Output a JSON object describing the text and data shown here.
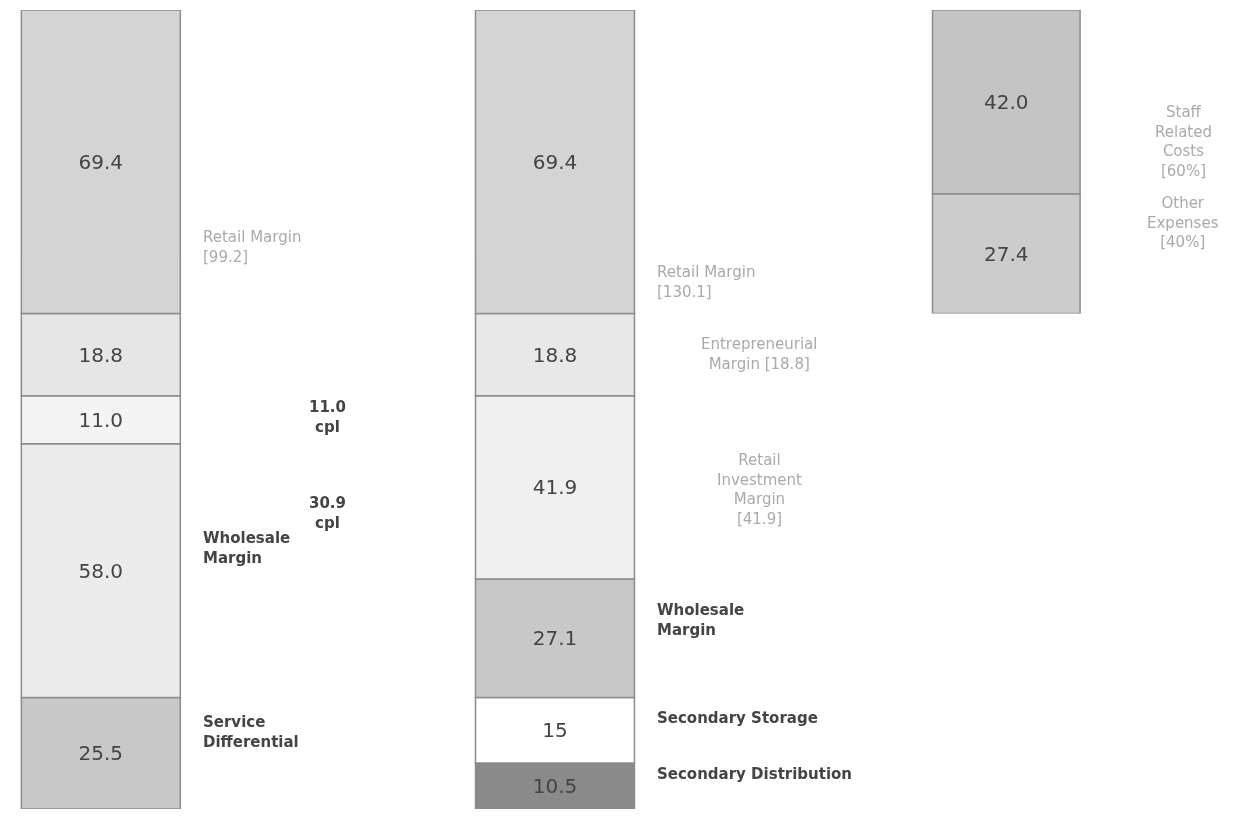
{
  "chart_data": [
    {
      "type": "bar",
      "stacked": true,
      "tick_labels": false,
      "categories": [
        null,
        null
      ],
      "series": [
        {
          "colors": [
            "#c8c8c8",
            "#8a8a8a"
          ],
          "values": [
            25.5,
            10.5
          ],
          "value_labels": [
            "25.5",
            "10.5"
          ]
        },
        {
          "colors": [
            "#ececec",
            "#ffffff"
          ],
          "values": [
            58.0,
            15
          ],
          "value_labels": [
            "58.0",
            "15"
          ]
        },
        {
          "colors": [
            "#f4f4f4",
            "#c8c8c8"
          ],
          "values": [
            11.0,
            27.1
          ],
          "value_labels": [
            "11.0",
            "27.1"
          ]
        },
        {
          "colors": [
            "#e6e6e6",
            "#f0f0f0"
          ],
          "values": [
            18.8,
            41.9
          ],
          "value_labels": [
            "18.8",
            "41.9"
          ]
        },
        {
          "colors": [
            "#d4d4d4",
            "#e8e8e8"
          ],
          "values": [
            69.4,
            18.8
          ],
          "value_labels": [
            "69.4",
            "18.8"
          ]
        },
        {
          "colors": [
            null,
            "#d4d4d4"
          ],
          "values": [
            null,
            69.4
          ],
          "value_labels": [
            null,
            "69.4"
          ]
        }
      ],
      "annotations": [
        "Retail Margin\n[99.2]",
        "Wholesale\nMargin",
        "Service\nDifferential",
        "11.0\ncpl",
        "30.9\ncpl",
        "Retail Margin\n[130.1]",
        "Entrepreneurial\nMargin [18.8]",
        "Retail\nInvestment\nMargin\n[41.9]",
        "Wholesale\nMargin",
        "Secondary Storage",
        "Secondary Distribution"
      ]
    },
    {
      "type": "bar",
      "stacked": true,
      "tick_labels": false,
      "categories": [
        null
      ],
      "series": [
        {
          "colors": [
            "#cccccc"
          ],
          "values": [
            27.4
          ],
          "value_labels": [
            "27.4"
          ]
        },
        {
          "colors": [
            "#c4c4c4"
          ],
          "values": [
            42.0
          ],
          "value_labels": [
            "42.0"
          ]
        }
      ],
      "annotations": [
        "Staff\nRelated\nCosts\n[60%]",
        "Other\nExpenses\n[40%]"
      ]
    }
  ]
}
